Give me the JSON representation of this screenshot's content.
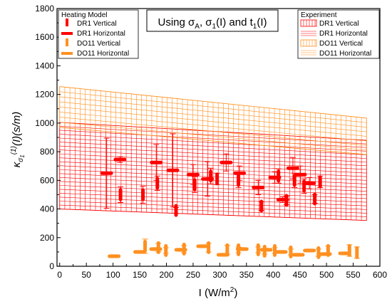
{
  "chart_data": {
    "type": "scatter",
    "title": "Using σA, σ1(I) and t1(I)",
    "title_parts": {
      "prefix": "Using σ",
      "s1": "A",
      "mid1": ", σ",
      "s2": "1",
      "mid2": "(I) and t",
      "s3": "1",
      "suffix": "(I)"
    },
    "xlabel": "I (W/m²)",
    "xlabel_parts": {
      "main": "I (W/m",
      "sup": "2",
      "end": ")"
    },
    "ylabel": "κσ1(1)(I)(s/m)",
    "ylabel_parts": {
      "kappa": "κ",
      "sub": "σ",
      "subsub": "1",
      "sup": "(1)",
      "rest": "(I)(s/m)"
    },
    "xlim": [
      -5,
      600
    ],
    "ylim": [
      0,
      1800
    ],
    "x_ticks": [
      "0",
      "50",
      "100",
      "150",
      "200",
      "250",
      "300",
      "350",
      "400",
      "450",
      "500",
      "550",
      "600"
    ],
    "y_ticks": [
      "0",
      "200",
      "400",
      "600",
      "800",
      "1000",
      "1200",
      "1400",
      "1600",
      "1800"
    ],
    "legend_model": {
      "title": "Heating Model",
      "entries": [
        "DR1 Vertical",
        "DR1 Horizontal",
        "DO11 Vertical",
        "DO11 Horizontal"
      ],
      "placement": "top-left"
    },
    "legend_experiment": {
      "title": "Experiment",
      "entries": [
        "DR1 Vertical",
        "DR1 Horizontal",
        "DO11 Vertical",
        "DO11 Horizontal"
      ],
      "placement": "top-right"
    },
    "colors": {
      "dr1": "#ff0000",
      "do11": "#ff9020"
    },
    "experiment_bands": [
      {
        "series": "DR1 Vertical",
        "x_range": [
          0,
          575
        ],
        "y_low": [
          400,
          320
        ],
        "y_high": [
          1005,
          880
        ],
        "pattern": "vertical"
      },
      {
        "series": "DR1 Horizontal",
        "x_range": [
          0,
          575
        ],
        "y_low": [
          400,
          320
        ],
        "y_high": [
          1005,
          880
        ],
        "pattern": "horizontal"
      },
      {
        "series": "DO11 Vertical",
        "x_range": [
          0,
          575
        ],
        "y_low": [
          970,
          780
        ],
        "y_high": [
          1255,
          1035
        ],
        "pattern": "vertical"
      },
      {
        "series": "DO11 Horizontal",
        "x_range": [
          0,
          575
        ],
        "y_low": [
          970,
          780
        ],
        "y_high": [
          1255,
          1035
        ],
        "pattern": "horizontal"
      }
    ],
    "series": [
      {
        "name": "DR1 Vertical",
        "points": [
          {
            "x": 114,
            "y": 500,
            "err": 55
          },
          {
            "x": 156,
            "y": 500,
            "err": 60
          },
          {
            "x": 183,
            "y": 580,
            "err": 50
          },
          {
            "x": 218,
            "y": 390,
            "err": 20
          },
          {
            "x": 253,
            "y": 570,
            "err": 55
          },
          {
            "x": 283,
            "y": 630,
            "err": 55
          },
          {
            "x": 295,
            "y": 610,
            "err": 40
          },
          {
            "x": 335,
            "y": 600,
            "err": 50
          },
          {
            "x": 378,
            "y": 420,
            "err": 30
          },
          {
            "x": 410,
            "y": 630,
            "err": 50
          },
          {
            "x": 425,
            "y": 460,
            "err": 30
          },
          {
            "x": 440,
            "y": 600,
            "err": 50
          },
          {
            "x": 458,
            "y": 560,
            "err": 50
          },
          {
            "x": 478,
            "y": 470,
            "err": 30
          },
          {
            "x": 488,
            "y": 590,
            "err": 40
          }
        ]
      },
      {
        "name": "DR1 Horizontal",
        "points": [
          {
            "x": 88,
            "y": 650,
            "err": 245
          },
          {
            "x": 113,
            "y": 745,
            "err": 20
          },
          {
            "x": 181,
            "y": 725,
            "err": 125
          },
          {
            "x": 212,
            "y": 670,
            "err": 255
          },
          {
            "x": 250,
            "y": 640,
            "err": 70
          },
          {
            "x": 277,
            "y": 610,
            "err": 120
          },
          {
            "x": 312,
            "y": 725,
            "err": 60
          },
          {
            "x": 337,
            "y": 650,
            "err": 50
          },
          {
            "x": 372,
            "y": 550,
            "err": 50
          },
          {
            "x": 403,
            "y": 620,
            "err": 40
          },
          {
            "x": 418,
            "y": 465,
            "err": 20
          },
          {
            "x": 437,
            "y": 685,
            "err": 75
          },
          {
            "x": 451,
            "y": 640,
            "err": 60
          },
          {
            "x": 468,
            "y": 580,
            "err": 40
          }
        ]
      },
      {
        "name": "DO11 Vertical",
        "points": [
          {
            "x": 160,
            "y": 140,
            "err": 50
          },
          {
            "x": 185,
            "y": 130,
            "err": 30
          },
          {
            "x": 199,
            "y": 110,
            "err": 20
          },
          {
            "x": 233,
            "y": 120,
            "err": 25
          },
          {
            "x": 279,
            "y": 130,
            "err": 30
          },
          {
            "x": 314,
            "y": 115,
            "err": 30
          },
          {
            "x": 335,
            "y": 115,
            "err": 20
          },
          {
            "x": 372,
            "y": 115,
            "err": 20
          },
          {
            "x": 384,
            "y": 105,
            "err": 20
          },
          {
            "x": 403,
            "y": 110,
            "err": 20
          },
          {
            "x": 433,
            "y": 100,
            "err": 20
          },
          {
            "x": 485,
            "y": 95,
            "err": 25
          },
          {
            "x": 503,
            "y": 110,
            "err": 30
          },
          {
            "x": 543,
            "y": 110,
            "err": 40
          },
          {
            "x": 557,
            "y": 95,
            "err": 40
          }
        ]
      },
      {
        "name": "DO11 Horizontal",
        "points": [
          {
            "x": 102,
            "y": 70,
            "err": 10
          },
          {
            "x": 150,
            "y": 100,
            "err": 10
          },
          {
            "x": 180,
            "y": 120,
            "err": 10
          },
          {
            "x": 227,
            "y": 115,
            "err": 10
          },
          {
            "x": 268,
            "y": 140,
            "err": 10
          },
          {
            "x": 306,
            "y": 80,
            "err": 10
          },
          {
            "x": 342,
            "y": 120,
            "err": 10
          },
          {
            "x": 387,
            "y": 115,
            "err": 10
          },
          {
            "x": 415,
            "y": 100,
            "err": 10
          },
          {
            "x": 447,
            "y": 80,
            "err": 10
          },
          {
            "x": 468,
            "y": 110,
            "err": 10
          },
          {
            "x": 498,
            "y": 85,
            "err": 10
          },
          {
            "x": 534,
            "y": 90,
            "err": 10
          }
        ]
      }
    ]
  }
}
